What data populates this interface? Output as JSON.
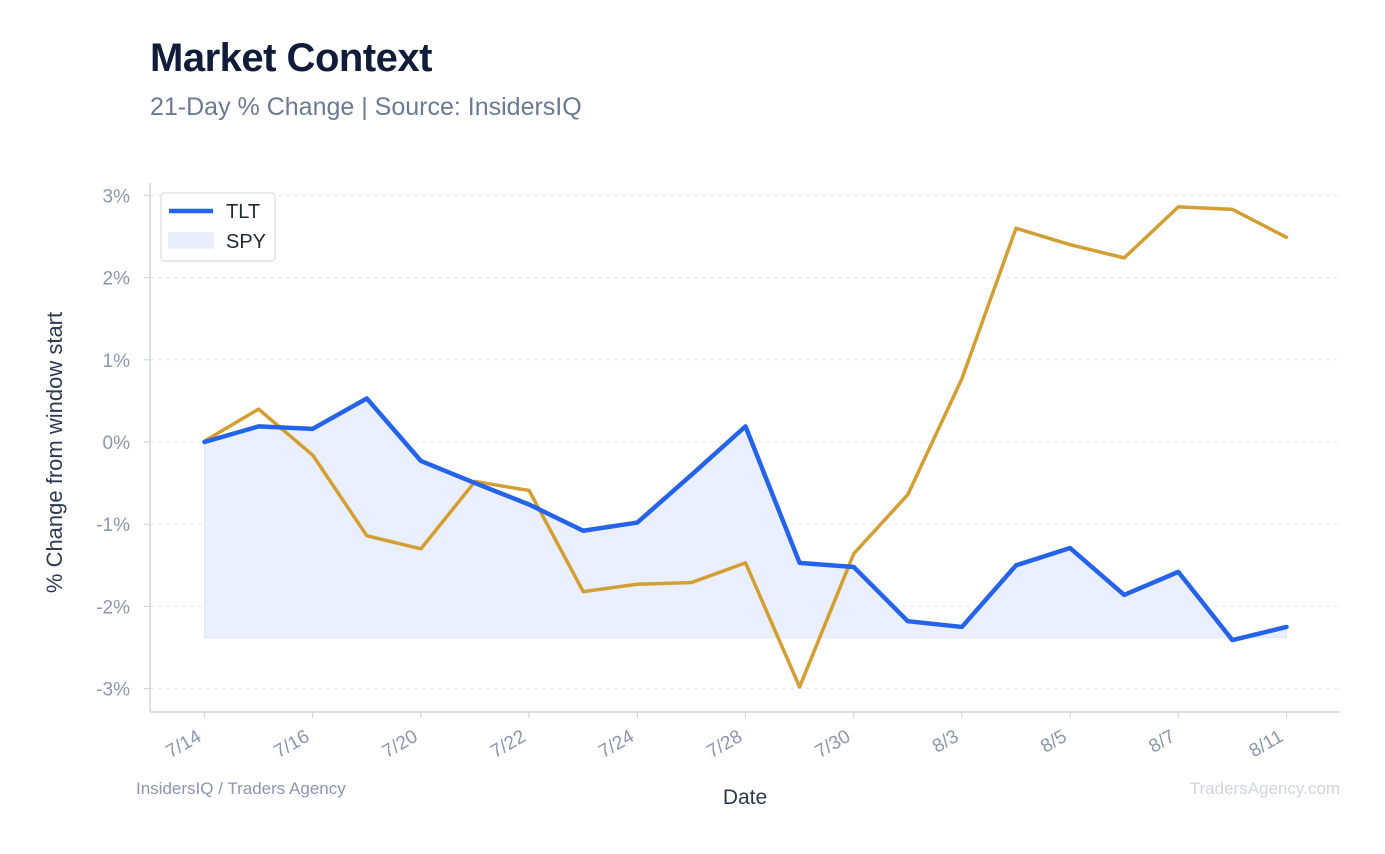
{
  "header": {
    "title": "Market Context",
    "subtitle": "21-Day % Change | Source: InsidersIQ"
  },
  "footer": {
    "left": "InsidersIQ / Traders Agency",
    "right": "TradersAgency.com"
  },
  "colors": {
    "tlt": "#2563eb",
    "spy": "#d39e33",
    "fill": "#e9effc",
    "grid": "#e6eaf0",
    "axis": "#cdd5e0",
    "tick_text": "#8a97ad"
  },
  "chart_data": {
    "type": "line",
    "xlabel": "Date",
    "ylabel": "% Change from window start",
    "ylim": [
      -3.25,
      3.0
    ],
    "yticks": [
      3,
      2,
      1,
      0,
      -1,
      -2,
      -3
    ],
    "ytick_labels": [
      "3%",
      "2%",
      "1%",
      "0%",
      "-1%",
      "-2%",
      "-3%"
    ],
    "xtick_labels": [
      "7/14",
      "7/16",
      "7/20",
      "7/22",
      "7/24",
      "7/28",
      "7/30",
      "8/3",
      "8/5",
      "8/7",
      "8/11"
    ],
    "legend": {
      "location": "top-left",
      "entries": [
        "TLT",
        "SPY"
      ]
    },
    "grid": true,
    "series": [
      {
        "name": "TLT",
        "style": "line",
        "values": [
          0.0,
          0.19,
          0.16,
          0.53,
          -0.23,
          -0.5,
          -0.76,
          -1.08,
          -0.98,
          -0.4,
          0.19,
          -1.47,
          -1.52,
          -2.18,
          -2.25,
          -1.5,
          -1.29,
          -1.86,
          -1.58,
          -2.41,
          -2.25
        ]
      },
      {
        "name": "SPY",
        "style": "area",
        "values": [
          0.01,
          0.4,
          -0.16,
          -1.14,
          -1.3,
          -0.48,
          -0.59,
          -1.82,
          -1.73,
          -1.71,
          -1.47,
          -2.98,
          -1.36,
          -0.64,
          0.77,
          2.6,
          2.4,
          2.24,
          2.86,
          2.83,
          2.49
        ]
      }
    ],
    "fill_baseline": -2.38
  }
}
